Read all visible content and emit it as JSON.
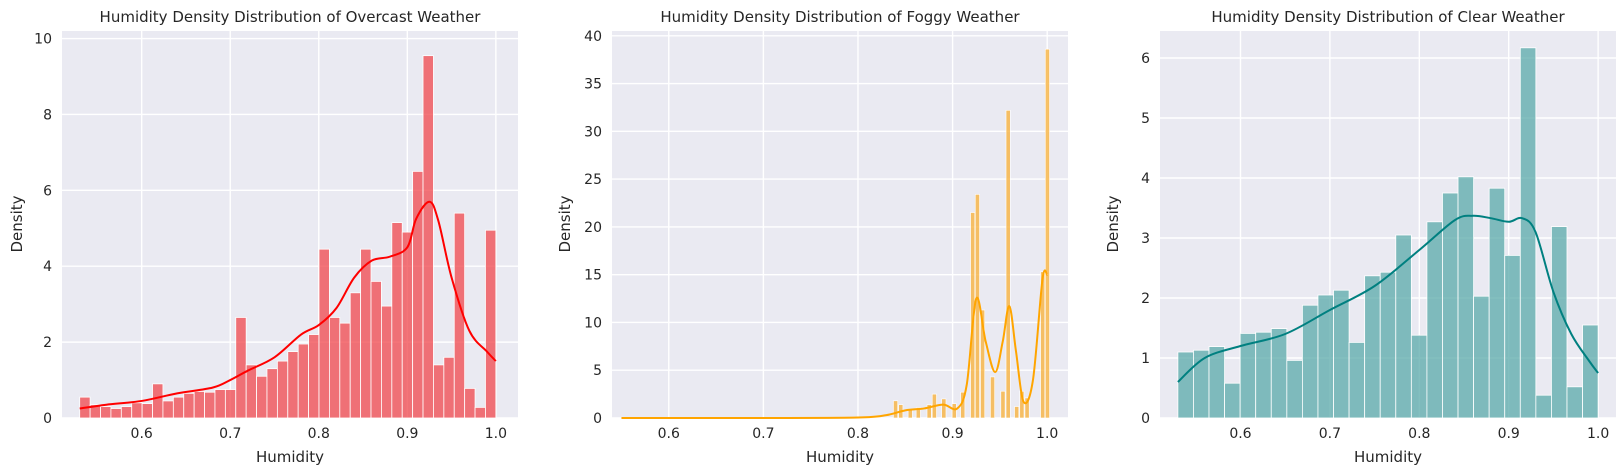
{
  "chart_data": [
    {
      "type": "histogram",
      "title": "Humidity Density Distribution of Overcast Weather",
      "xlabel": "Humidity",
      "ylabel": "Density",
      "xlim": [
        0.51,
        1.025
      ],
      "ylim": [
        0,
        10.2
      ],
      "xticks": [
        "0.6",
        "0.7",
        "0.8",
        "0.9",
        "1.0"
      ],
      "yticks": [
        "0",
        "2",
        "4",
        "6",
        "8",
        "10"
      ],
      "color": "#f0474c",
      "kde_color": "#ff0000",
      "grid": true,
      "bins": {
        "start": 0.53,
        "end": 1.0,
        "values": [
          0.55,
          0.35,
          0.3,
          0.25,
          0.3,
          0.4,
          0.38,
          0.9,
          0.45,
          0.55,
          0.65,
          0.7,
          0.68,
          0.75,
          0.75,
          2.65,
          1.4,
          1.1,
          1.3,
          1.5,
          1.75,
          1.95,
          2.2,
          4.45,
          2.65,
          2.5,
          3.3,
          4.45,
          3.6,
          2.95,
          5.15,
          4.9,
          6.5,
          9.55,
          1.4,
          1.6,
          5.4,
          0.78,
          0.28,
          4.95
        ]
      },
      "kde": {
        "x": [
          0.53,
          0.56,
          0.6,
          0.64,
          0.68,
          0.7,
          0.72,
          0.75,
          0.78,
          0.8,
          0.82,
          0.84,
          0.86,
          0.88,
          0.9,
          0.91,
          0.925,
          0.935,
          0.95,
          0.97,
          0.99,
          1.0
        ],
        "y": [
          0.25,
          0.35,
          0.45,
          0.65,
          0.8,
          1.0,
          1.25,
          1.6,
          2.2,
          2.45,
          2.9,
          3.7,
          4.15,
          4.25,
          4.5,
          5.25,
          5.7,
          5.2,
          3.7,
          2.3,
          1.75,
          1.5
        ]
      }
    },
    {
      "type": "histogram",
      "title": "Humidity Density Distribution of Foggy Weather",
      "xlabel": "Humidity",
      "ylabel": "Density",
      "xlim": [
        0.54,
        1.022
      ],
      "ylim": [
        0,
        40.5
      ],
      "xticks": [
        "0.6",
        "0.7",
        "0.8",
        "0.9",
        "1.0"
      ],
      "yticks": [
        "0",
        "5",
        "10",
        "15",
        "20",
        "25",
        "30",
        "35",
        "40"
      ],
      "color": "#f7b340",
      "kde_color": "#ffa500",
      "grid": true,
      "bins": {
        "start": 0.55,
        "end": 1.0,
        "values": [
          0,
          0,
          0,
          0,
          0,
          0,
          0,
          0,
          0,
          0,
          0,
          0,
          0,
          0,
          0,
          0,
          0,
          0,
          0,
          0,
          0,
          0,
          0,
          0,
          0,
          0,
          0,
          0,
          0,
          0,
          0,
          0,
          0,
          0,
          0,
          0,
          0,
          0,
          0,
          0,
          0,
          0,
          0,
          0,
          0,
          0,
          0,
          0,
          0,
          0,
          0,
          0,
          0,
          0,
          0,
          0,
          0,
          0,
          0,
          0,
          0,
          0,
          0,
          0,
          0,
          0,
          0,
          0,
          0,
          0,
          0,
          0,
          0,
          0,
          0,
          0,
          0,
          0,
          0,
          0,
          0,
          0,
          0,
          0,
          0,
          0,
          0,
          0,
          0,
          0,
          0,
          0,
          0,
          0,
          0,
          0,
          0,
          0,
          0,
          0,
          0,
          0,
          0,
          0,
          0,
          0,
          0,
          0,
          0,
          0,
          0,
          0,
          0,
          0,
          0,
          0,
          0,
          0,
          0,
          0,
          0,
          0,
          0,
          0,
          0,
          0,
          0,
          0,
          0,
          0,
          0,
          0,
          0,
          0,
          0,
          0,
          0,
          0,
          0,
          0,
          0,
          0,
          0,
          0,
          0,
          0,
          0,
          0,
          0,
          0,
          0,
          0,
          0,
          0,
          0,
          0,
          0,
          0,
          0,
          0,
          0,
          0,
          0,
          0,
          0,
          0,
          0,
          0,
          0,
          0,
          0,
          0,
          0,
          0,
          0,
          0,
          0,
          0,
          0,
          0,
          0,
          0,
          0,
          0,
          0,
          0,
          0,
          0,
          0,
          0,
          0,
          0,
          0,
          0,
          0,
          0,
          0,
          0,
          0,
          0,
          0,
          0,
          0,
          0,
          0,
          0,
          0,
          0,
          0,
          0,
          0,
          0,
          0,
          0,
          0,
          0,
          0,
          0,
          0,
          0
        ]
      },
      "bars": [
        {
          "x0": 0.8375,
          "x1": 0.842,
          "v": 1.8
        },
        {
          "x0": 0.843,
          "x1": 0.8475,
          "v": 1.4
        },
        {
          "x0": 0.853,
          "x1": 0.8575,
          "v": 0.9
        },
        {
          "x0": 0.8615,
          "x1": 0.866,
          "v": 1.1
        },
        {
          "x0": 0.873,
          "x1": 0.8775,
          "v": 1.4
        },
        {
          "x0": 0.8785,
          "x1": 0.883,
          "v": 2.5
        },
        {
          "x0": 0.8885,
          "x1": 0.893,
          "v": 2.0
        },
        {
          "x0": 0.8995,
          "x1": 0.904,
          "v": 1.5
        },
        {
          "x0": 0.9085,
          "x1": 0.913,
          "v": 2.7
        },
        {
          "x0": 0.919,
          "x1": 0.9235,
          "v": 21.5
        },
        {
          "x0": 0.924,
          "x1": 0.9285,
          "v": 23.4
        },
        {
          "x0": 0.9295,
          "x1": 0.934,
          "v": 11.3
        },
        {
          "x0": 0.94,
          "x1": 0.9445,
          "v": 4.3
        },
        {
          "x0": 0.951,
          "x1": 0.9555,
          "v": 2.8
        },
        {
          "x0": 0.9565,
          "x1": 0.961,
          "v": 32.2
        },
        {
          "x0": 0.9655,
          "x1": 0.97,
          "v": 1.2
        },
        {
          "x0": 0.971,
          "x1": 0.9755,
          "v": 2.8
        },
        {
          "x0": 0.9765,
          "x1": 0.981,
          "v": 2.1
        },
        {
          "x0": 0.993,
          "x1": 0.9975,
          "v": 15.3
        },
        {
          "x0": 0.998,
          "x1": 1.0025,
          "v": 38.6
        }
      ],
      "kde": {
        "x": [
          0.55,
          0.7,
          0.8,
          0.83,
          0.85,
          0.87,
          0.89,
          0.905,
          0.915,
          0.925,
          0.935,
          0.945,
          0.953,
          0.96,
          0.967,
          0.975,
          0.985,
          0.995,
          1.0
        ],
        "y": [
          0,
          0,
          0.05,
          0.3,
          0.8,
          1.0,
          1.4,
          1.0,
          3.5,
          12.5,
          8.0,
          4.8,
          8.0,
          11.7,
          7.0,
          1.7,
          4.0,
          14.5,
          15.0
        ]
      }
    },
    {
      "type": "histogram",
      "title": "Humidity Density Distribution of Clear Weather",
      "xlabel": "Humidity",
      "ylabel": "Density",
      "xlim": [
        0.51,
        1.02
      ],
      "ylim": [
        0,
        6.45
      ],
      "xticks": [
        "0.6",
        "0.7",
        "0.8",
        "0.9",
        "1.0"
      ],
      "yticks": [
        "0",
        "1",
        "2",
        "3",
        "4",
        "5",
        "6"
      ],
      "color": "#5aa9a9",
      "kde_color": "#008080",
      "grid": true,
      "bins": {
        "start": 0.53,
        "end": 1.0,
        "values": [
          1.1,
          1.13,
          1.19,
          0.58,
          1.41,
          1.43,
          1.49,
          0.96,
          1.88,
          2.05,
          2.13,
          1.26,
          2.37,
          2.43,
          3.05,
          1.38,
          3.27,
          3.75,
          4.02,
          2.03,
          3.83,
          2.71,
          6.17,
          0.38,
          3.19,
          0.52,
          1.55
        ]
      },
      "kde": {
        "x": [
          0.53,
          0.56,
          0.6,
          0.65,
          0.7,
          0.75,
          0.8,
          0.84,
          0.86,
          0.88,
          0.9,
          0.915,
          0.93,
          0.95,
          0.97,
          0.99,
          1.0
        ],
        "y": [
          0.6,
          1.0,
          1.2,
          1.4,
          1.8,
          2.2,
          2.8,
          3.3,
          3.37,
          3.33,
          3.27,
          3.33,
          3.1,
          2.1,
          1.4,
          0.95,
          0.75
        ]
      }
    }
  ]
}
